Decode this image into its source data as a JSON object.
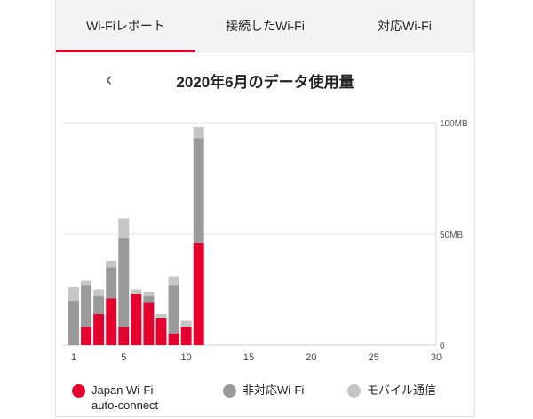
{
  "tabs": [
    {
      "label": "Wi-Fiレポート",
      "active": true
    },
    {
      "label": "接続したWi-Fi",
      "active": false
    },
    {
      "label": "対応Wi-Fi",
      "active": false
    }
  ],
  "header": {
    "back_icon": "‹",
    "title": "2020年6月のデータ使用量"
  },
  "colors": {
    "accent": "#e6002d",
    "japan_wifi": "#e6002d",
    "non_supported_wifi": "#9a9a9a",
    "mobile": "#c6c6c6"
  },
  "chart_data": {
    "type": "bar",
    "stacked": true,
    "title": "2020年6月のデータ使用量",
    "x": [
      1,
      2,
      3,
      4,
      5,
      6,
      7,
      8,
      9,
      10,
      11
    ],
    "xlim": [
      1,
      30
    ],
    "xticks": [
      1,
      5,
      10,
      15,
      20,
      25,
      30
    ],
    "ylim": [
      0,
      100
    ],
    "yticks": [
      {
        "value": 0,
        "label": "0"
      },
      {
        "value": 50,
        "label": "50MB"
      },
      {
        "value": 100,
        "label": "100MB"
      }
    ],
    "y_axis_position": "right",
    "grid": true,
    "series": [
      {
        "name": "Japan Wi-Fi auto-connect",
        "color": "#e6002d",
        "values": [
          0,
          8,
          14,
          21,
          8,
          23,
          19,
          12,
          5,
          8,
          46
        ]
      },
      {
        "name": "非対応Wi-Fi",
        "color": "#9a9a9a",
        "values": [
          20,
          19,
          8,
          14,
          40,
          0,
          3,
          0,
          22,
          0,
          47
        ]
      },
      {
        "name": "モバイル通信",
        "color": "#c6c6c6",
        "values": [
          6,
          2,
          3,
          3,
          9,
          2,
          2,
          2,
          4,
          3,
          5
        ]
      }
    ]
  },
  "legend": [
    {
      "label": "Japan Wi-Fi",
      "label2": "auto-connect",
      "color": "#e6002d"
    },
    {
      "label": "非対応Wi-Fi",
      "color": "#9a9a9a"
    },
    {
      "label": "モバイル通信",
      "color": "#c6c6c6"
    }
  ]
}
